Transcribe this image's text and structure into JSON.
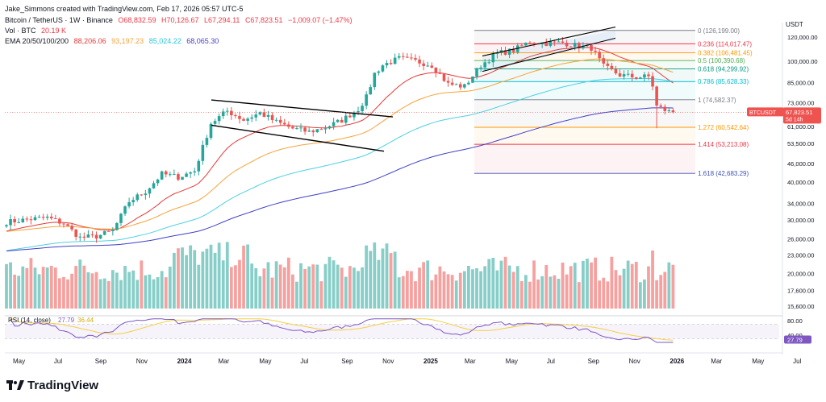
{
  "header": {
    "credit": "Jake_Simmons created with TradingView.com, Feb 17, 2026 05:57 UTC-5",
    "symbol_line": "Bitcoin / TetherUS · 1W · Binance",
    "ohlc": {
      "open": "O68,832.59",
      "high": "H70,126.67",
      "low": "L67,294.11",
      "close": "C67,823.51",
      "change": "−1,009.07 (−1.47%)"
    },
    "volume_label": "Vol · BTC",
    "volume_value": "20.19 K",
    "ema_label": "EMA 20/50/100/200",
    "ema_values": [
      "88,206.06",
      "93,197.23",
      "85,024.22",
      "68,065.30"
    ]
  },
  "colors": {
    "up": "#26a69a",
    "down": "#ef5350",
    "ema20": "#e53935",
    "ema50": "#f7a33b",
    "ema100": "#4dd0e1",
    "ema200": "#3f3fc8",
    "rsi": "#7e57c2",
    "rsi_ma": "#f4d03f"
  },
  "price_scale": {
    "currency": "USDT",
    "ticks": [
      "120,000.00",
      "100,000.00",
      "85,000.00",
      "73,000.00",
      "61,000.00",
      "53,500.00",
      "46,000.00",
      "40,000.00",
      "34,000.00",
      "30,000.00",
      "26,000.00",
      "23,000.00",
      "20,000.00",
      "17,600.00",
      "15,600.00"
    ],
    "last_price_label": "BTCUSDT",
    "last_price": "67,823.51",
    "countdown": "5d 14h"
  },
  "fib_levels": [
    {
      "label": "0 (126,199.00)",
      "price": 126199,
      "color": "#787b86"
    },
    {
      "label": "0.236 (114,017.47)",
      "price": 114017.47,
      "color": "#f23645"
    },
    {
      "label": "0.382 (106,481.45)",
      "price": 106481.45,
      "color": "#ff9800"
    },
    {
      "label": "0.5 (100,390.68)",
      "price": 100390.68,
      "color": "#4caf50"
    },
    {
      "label": "0.618 (94,299.92)",
      "price": 94299.92,
      "color": "#089981"
    },
    {
      "label": "0.786 (85,628.33)",
      "price": 85628.33,
      "color": "#00bcd4"
    },
    {
      "label": "1 (74,582.37)",
      "price": 74582.37,
      "color": "#787b86"
    },
    {
      "label": "1.272 (60,542.64)",
      "price": 60542.64,
      "color": "#ff9800"
    },
    {
      "label": "1.414 (53,213.08)",
      "price": 53213.08,
      "color": "#f23645"
    },
    {
      "label": "1.618 (42,683.29)",
      "price": 42683.29,
      "color": "#3f51b5"
    }
  ],
  "rsi": {
    "label": "RSI (14, close)",
    "value": "27.79",
    "ma_value": "36.44",
    "ticks": [
      "80.00",
      "40.00"
    ]
  },
  "time_axis": [
    "May",
    "Jul",
    "Sep",
    "Nov",
    "2024",
    "Mar",
    "May",
    "Jul",
    "Sep",
    "Nov",
    "2025",
    "Mar",
    "May",
    "Jul",
    "Sep",
    "Nov",
    "2026",
    "Mar",
    "May",
    "Jul"
  ],
  "brand": "TradingView",
  "chart_data": {
    "type": "candlestick",
    "interval": "1W",
    "y_scale": "log",
    "keypoints": [
      {
        "t": 0,
        "p": 29500
      },
      {
        "t": 6,
        "p": 30200
      },
      {
        "t": 10,
        "p": 30500
      },
      {
        "t": 14,
        "p": 29200
      },
      {
        "t": 18,
        "p": 26200
      },
      {
        "t": 22,
        "p": 26500
      },
      {
        "t": 26,
        "p": 27600
      },
      {
        "t": 30,
        "p": 34500
      },
      {
        "t": 34,
        "p": 37200
      },
      {
        "t": 38,
        "p": 42500
      },
      {
        "t": 42,
        "p": 41500
      },
      {
        "t": 46,
        "p": 43500
      },
      {
        "t": 48,
        "p": 52000
      },
      {
        "t": 50,
        "p": 62500
      },
      {
        "t": 54,
        "p": 68500
      },
      {
        "t": 58,
        "p": 64000
      },
      {
        "t": 62,
        "p": 67500
      },
      {
        "t": 66,
        "p": 63000
      },
      {
        "t": 70,
        "p": 60000
      },
      {
        "t": 74,
        "p": 58500
      },
      {
        "t": 78,
        "p": 60500
      },
      {
        "t": 82,
        "p": 63800
      },
      {
        "t": 86,
        "p": 69500
      },
      {
        "t": 88,
        "p": 76000
      },
      {
        "t": 90,
        "p": 91000
      },
      {
        "t": 92,
        "p": 97000
      },
      {
        "t": 96,
        "p": 102000
      },
      {
        "t": 100,
        "p": 100000
      },
      {
        "t": 104,
        "p": 97000
      },
      {
        "t": 108,
        "p": 84000
      },
      {
        "t": 112,
        "p": 82500
      },
      {
        "t": 116,
        "p": 97000
      },
      {
        "t": 120,
        "p": 106000
      },
      {
        "t": 124,
        "p": 108500
      },
      {
        "t": 128,
        "p": 116000
      },
      {
        "t": 132,
        "p": 114500
      },
      {
        "t": 136,
        "p": 115000
      },
      {
        "t": 140,
        "p": 112000
      },
      {
        "t": 143,
        "p": 110500
      },
      {
        "t": 146,
        "p": 96000
      },
      {
        "t": 150,
        "p": 90000
      },
      {
        "t": 154,
        "p": 88500
      },
      {
        "t": 157,
        "p": 89000
      },
      {
        "t": 158,
        "p": 83000
      },
      {
        "t": 159,
        "p": 71000
      },
      {
        "t": 161,
        "p": 69000
      },
      {
        "t": 162,
        "p": 68832
      },
      {
        "t": 163,
        "p": 67823
      }
    ]
  }
}
